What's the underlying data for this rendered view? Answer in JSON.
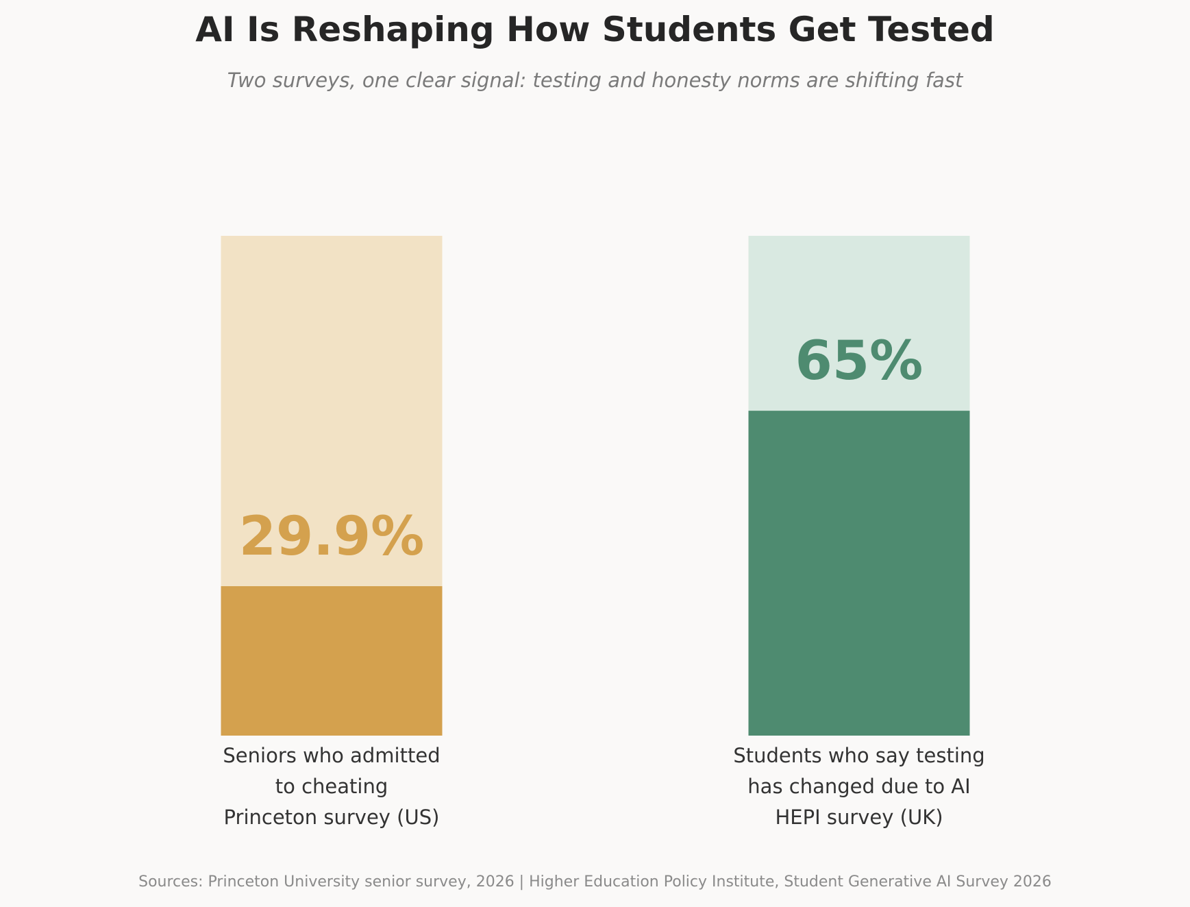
{
  "chart_data": {
    "type": "bar",
    "title": "AI Is Reshaping How Students Get Tested",
    "subtitle": "Two surveys, one clear signal: testing and honesty norms are shifting fast",
    "ylim": [
      0,
      100
    ],
    "grid": false,
    "bars": [
      {
        "value": 29.9,
        "value_label": "29.9%",
        "label_lines": [
          "Seniors who admitted",
          "to cheating",
          "Princeton survey (US)"
        ],
        "fill_color": "#d4a14e",
        "track_color": "#f2e2c5",
        "value_color": "#d4a14e"
      },
      {
        "value": 65,
        "value_label": "65%",
        "label_lines": [
          "Students who say testing",
          "has changed due to AI",
          "HEPI survey (UK)"
        ],
        "fill_color": "#4e8b70",
        "track_color": "#d9e9e1",
        "value_color": "#4e8b70"
      }
    ],
    "source": "Sources: Princeton University senior survey, 2026  |  Higher Education Policy Institute, Student Generative AI Survey 2026"
  }
}
